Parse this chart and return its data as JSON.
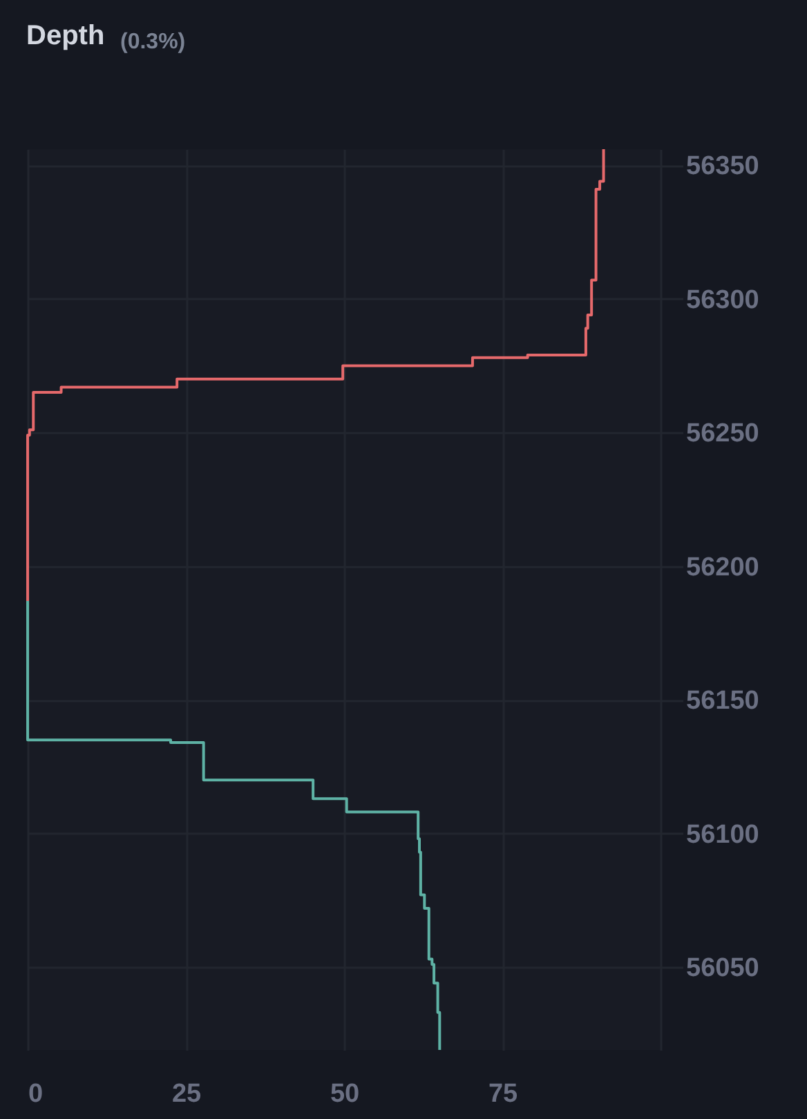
{
  "chart_data": {
    "type": "step",
    "title": "Depth",
    "subtitle": "(0.3%)",
    "xlim": [
      0,
      100
    ],
    "xticks": [
      0,
      25,
      50,
      75,
      {
        "value": 100,
        "label": null
      }
    ],
    "ylim": [
      56019,
      56356
    ],
    "yticks": [
      56050,
      56100,
      56150,
      56200,
      56250,
      56300,
      56350
    ],
    "grid": true,
    "series": [
      {
        "color": "#e5696b",
        "x": [
          0,
          0.3,
          0.9,
          5.3,
          23.6,
          49.8,
          70.3,
          79.0,
          88.2,
          88.5,
          89.1,
          89.8,
          90.4,
          91.0,
          91.0
        ],
        "values": [
          56187,
          56249,
          56251,
          56265,
          56267,
          56270,
          56275,
          56278,
          56279,
          56289,
          56294,
          56307,
          56341,
          56344,
          56356
        ]
      },
      {
        "color": "#5eb2a5",
        "x": [
          0,
          22.6,
          27.8,
          45.1,
          50.4,
          61.7,
          61.9,
          62.1,
          62.7,
          63.4,
          63.9,
          64.2,
          64.8,
          65.1,
          65.1
        ],
        "values": [
          56187,
          56135,
          56134,
          56120,
          56113,
          56108,
          56098,
          56093,
          56077,
          56072,
          56053,
          56051,
          56044,
          56033,
          56019
        ]
      }
    ]
  }
}
